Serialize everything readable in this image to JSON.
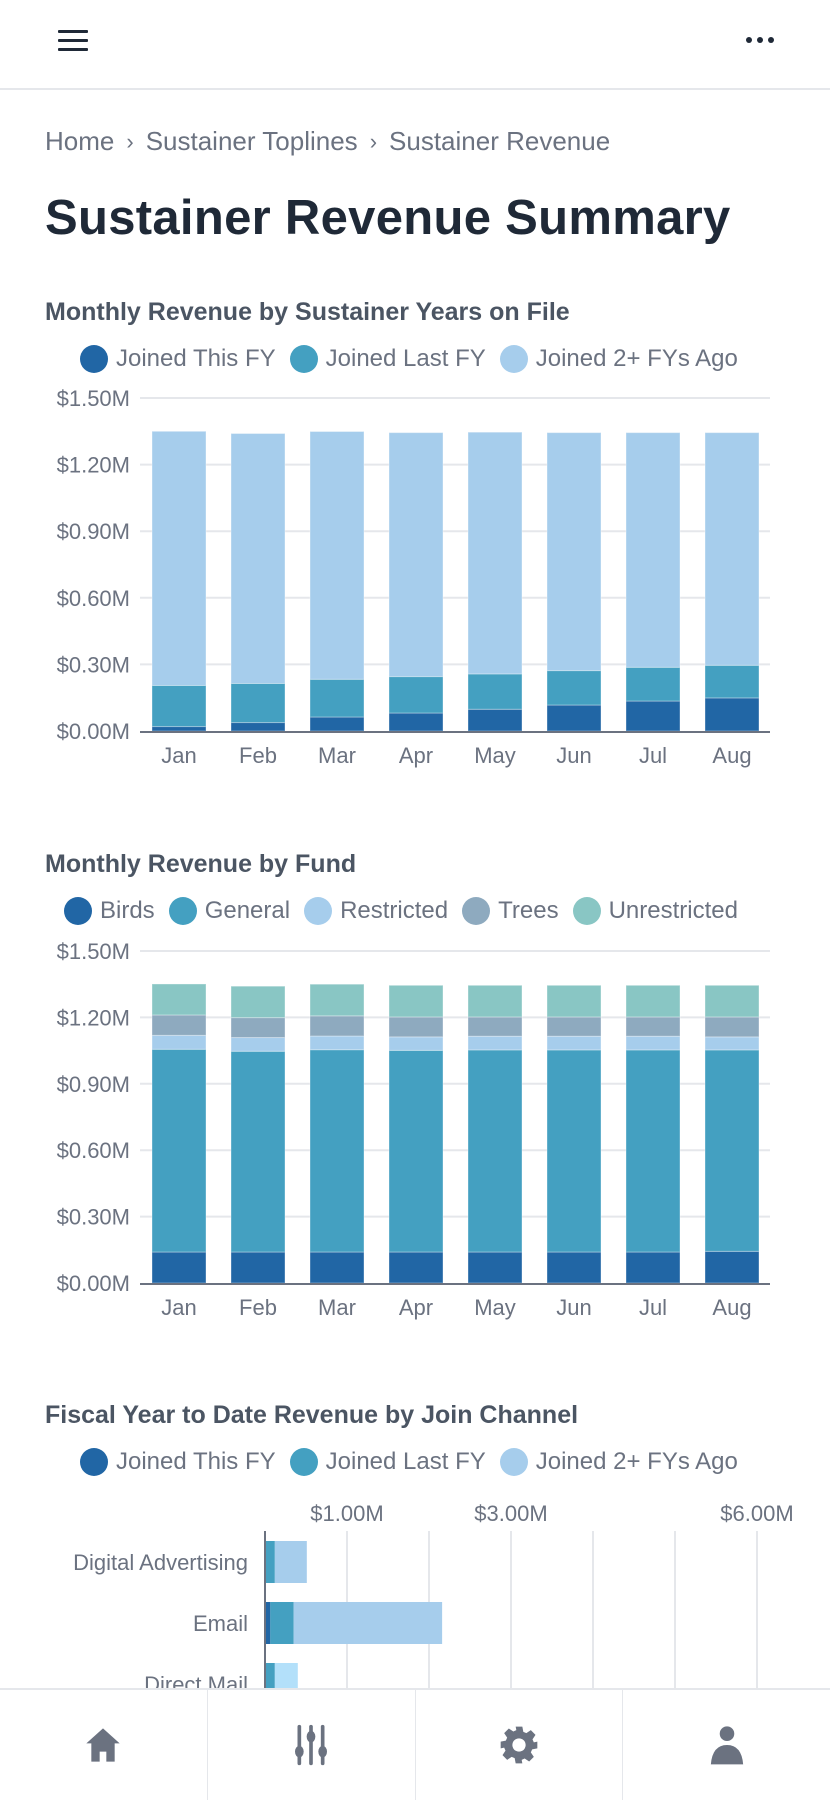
{
  "header": {
    "menu_icon": "hamburger-icon",
    "more_icon": "more-horizontal-icon"
  },
  "breadcrumb": [
    "Home",
    "Sustainer Toplines",
    "Sustainer Revenue"
  ],
  "page_title": "Sustainer Revenue Summary",
  "nav": [
    {
      "icon": "home-icon"
    },
    {
      "icon": "sliders-icon"
    },
    {
      "icon": "gear-icon"
    },
    {
      "icon": "user-icon"
    }
  ],
  "chart_data": [
    {
      "type": "bar",
      "stacked": true,
      "orientation": "vertical",
      "title": "Monthly Revenue by Sustainer Years on File",
      "categories": [
        "Jan",
        "Feb",
        "Mar",
        "Apr",
        "May",
        "Jun",
        "Jul",
        "Aug"
      ],
      "yticks": [
        "$0.00M",
        "$0.30M",
        "$0.60M",
        "$0.90M",
        "$1.20M",
        "$1.50M"
      ],
      "ylim": [
        0,
        1.5
      ],
      "yunit": "$M",
      "grid": true,
      "legend": "top",
      "series": [
        {
          "name": "Joined This FY",
          "color": "#2166a5",
          "values": [
            0.02,
            0.038,
            0.063,
            0.081,
            0.098,
            0.117,
            0.135,
            0.149
          ]
        },
        {
          "name": "Joined Last FY",
          "color": "#44a0c1",
          "values": [
            0.185,
            0.176,
            0.17,
            0.164,
            0.159,
            0.155,
            0.152,
            0.147
          ]
        },
        {
          "name": "Joined 2+ FYs Ago",
          "color": "#a6cdec",
          "values": [
            1.145,
            1.126,
            1.116,
            1.099,
            1.089,
            1.072,
            1.057,
            1.048
          ]
        }
      ]
    },
    {
      "type": "bar",
      "stacked": true,
      "orientation": "vertical",
      "title": "Monthly Revenue by Fund",
      "categories": [
        "Jan",
        "Feb",
        "Mar",
        "Apr",
        "May",
        "Jun",
        "Jul",
        "Aug"
      ],
      "yticks": [
        "$0.00M",
        "$0.30M",
        "$0.60M",
        "$0.90M",
        "$1.20M",
        "$1.50M"
      ],
      "ylim": [
        0,
        1.5
      ],
      "yunit": "$M",
      "grid": true,
      "legend": "top",
      "series": [
        {
          "name": "Birds",
          "color": "#2166a5",
          "values": [
            0.14,
            0.14,
            0.14,
            0.14,
            0.14,
            0.14,
            0.14,
            0.143
          ]
        },
        {
          "name": "General",
          "color": "#44a0c1",
          "values": [
            0.916,
            0.907,
            0.914,
            0.911,
            0.913,
            0.913,
            0.913,
            0.91
          ]
        },
        {
          "name": "Restricted",
          "color": "#a6cdec",
          "values": [
            0.063,
            0.062,
            0.062,
            0.061,
            0.062,
            0.062,
            0.062,
            0.059
          ]
        },
        {
          "name": "Trees",
          "color": "#8eaabf",
          "values": [
            0.092,
            0.09,
            0.091,
            0.09,
            0.087,
            0.087,
            0.087,
            0.09
          ]
        },
        {
          "name": "Unrestricted",
          "color": "#89c6c4",
          "values": [
            0.14,
            0.142,
            0.143,
            0.143,
            0.143,
            0.143,
            0.143,
            0.143
          ]
        }
      ]
    },
    {
      "type": "bar",
      "stacked": true,
      "orientation": "horizontal",
      "title": "Fiscal Year to Date Revenue by Join Channel",
      "categories": [
        "Digital Advertising",
        "Email",
        "Direct Mail"
      ],
      "xticks": [
        {
          "value": 1,
          "label": "$1.00M"
        },
        {
          "value": 3,
          "label": "$3.00M"
        },
        {
          "value": 6,
          "label": "$6.00M"
        }
      ],
      "xgrid": [
        1,
        2,
        3,
        4,
        5,
        6
      ],
      "xunit": "$M",
      "grid": true,
      "legend": "top",
      "series": [
        {
          "name": "Joined This FY",
          "color": "#2166a5",
          "values": [
            0.01,
            0.065,
            0.01
          ]
        },
        {
          "name": "Joined Last FY",
          "color": "#44a0c1",
          "values": [
            0.11,
            0.285,
            0.11
          ]
        },
        {
          "name": "Joined 2+ FYs Ago",
          "color": "#a6cdec",
          "values": [
            0.39,
            1.81,
            0.28
          ]
        }
      ],
      "highlight_color": "#b3e0fa"
    }
  ]
}
